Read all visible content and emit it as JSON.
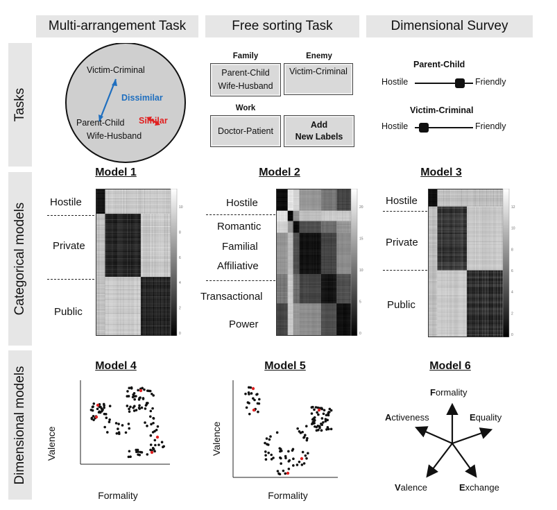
{
  "columns": [
    "Multi-arrangement Task",
    "Free sorting Task",
    "Dimensional Survey"
  ],
  "rows": [
    "Tasks",
    "Categorical models",
    "Dimensional models"
  ],
  "tasks": {
    "multi_arrangement": {
      "items": [
        "Victim-Criminal",
        "Parent-Child",
        "Wife-Husband"
      ],
      "dissimilar_label": "Dissimilar",
      "similar_label": "Similar",
      "colors": {
        "dissimilar": "#1f6fbf",
        "similar": "#e02020",
        "circle": "#cfcfcf"
      }
    },
    "free_sorting": {
      "groups": [
        {
          "header": "Family",
          "lines": [
            "Parent-Child",
            "Wife-Husband"
          ]
        },
        {
          "header": "Enemy",
          "lines": [
            "Victim-Criminal"
          ]
        },
        {
          "header": "Work",
          "lines": [
            "Doctor-Patient"
          ]
        },
        {
          "header": "",
          "lines": [
            "Add",
            "New Labels"
          ]
        }
      ]
    },
    "survey": {
      "items": [
        {
          "title": "Parent-Child",
          "left": "Hostile",
          "right": "Friendly",
          "position": 0.9
        },
        {
          "title": "Victim-Criminal",
          "left": "Hostile",
          "right": "Friendly",
          "position": 0.1
        }
      ]
    }
  },
  "categorical_models": [
    {
      "title": "Model 1",
      "labels": [
        "Hostile",
        "Private",
        "Public"
      ],
      "colorbar_ticks": [
        "0",
        "2",
        "4",
        "6",
        "8",
        "10"
      ]
    },
    {
      "title": "Model 2",
      "labels": [
        "Hostile",
        "Romantic",
        "Familial",
        "Affiliative",
        "Transactional",
        "Power"
      ],
      "colorbar_ticks": [
        "0",
        "5",
        "10",
        "15",
        "20"
      ]
    },
    {
      "title": "Model 3",
      "labels": [
        "Hostile",
        "Private",
        "Public"
      ],
      "colorbar_ticks": [
        "0",
        "2",
        "4",
        "6",
        "8",
        "10",
        "12"
      ]
    }
  ],
  "dimensional_models": [
    {
      "title": "Model 4",
      "xlabel": "Formality",
      "ylabel": "Valence"
    },
    {
      "title": "Model 5",
      "xlabel": "Formality",
      "ylabel": "Valence"
    },
    {
      "title": "Model 6",
      "dimensions": [
        {
          "initial": "F",
          "rest": "ormality"
        },
        {
          "initial": "A",
          "rest": "ctiveness"
        },
        {
          "initial": "E",
          "rest": "quality"
        },
        {
          "initial": "V",
          "rest": "alence"
        },
        {
          "initial": "E",
          "rest": "xchange"
        }
      ]
    }
  ]
}
